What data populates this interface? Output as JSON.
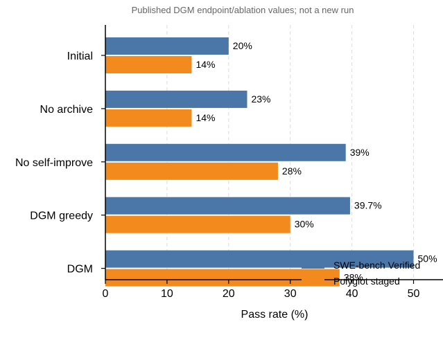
{
  "chart_data": {
    "type": "bar",
    "orientation": "horizontal",
    "subtitle": "Published DGM endpoint/ablation values; not a new run",
    "xlabel": "Pass rate (%)",
    "ylabel": "",
    "xlim": [
      0,
      55
    ],
    "xticks": [
      0,
      10,
      20,
      30,
      40,
      50
    ],
    "grid": "x-dashed",
    "legend_position": "bottom-right",
    "categories": [
      "Initial",
      "No archive",
      "No self-improve",
      "DGM greedy",
      "DGM"
    ],
    "series": [
      {
        "name": "SWE-bench Verified",
        "color": "#4a76a8",
        "values": [
          20,
          23,
          39,
          39.7,
          50
        ],
        "labels": [
          "20%",
          "23%",
          "39%",
          "39.7%",
          "50%"
        ]
      },
      {
        "name": "Polyglot staged",
        "color": "#f28a1e",
        "values": [
          14,
          14,
          28,
          30,
          38
        ],
        "labels": [
          "14%",
          "14%",
          "28%",
          "30%",
          "38%"
        ]
      }
    ]
  }
}
